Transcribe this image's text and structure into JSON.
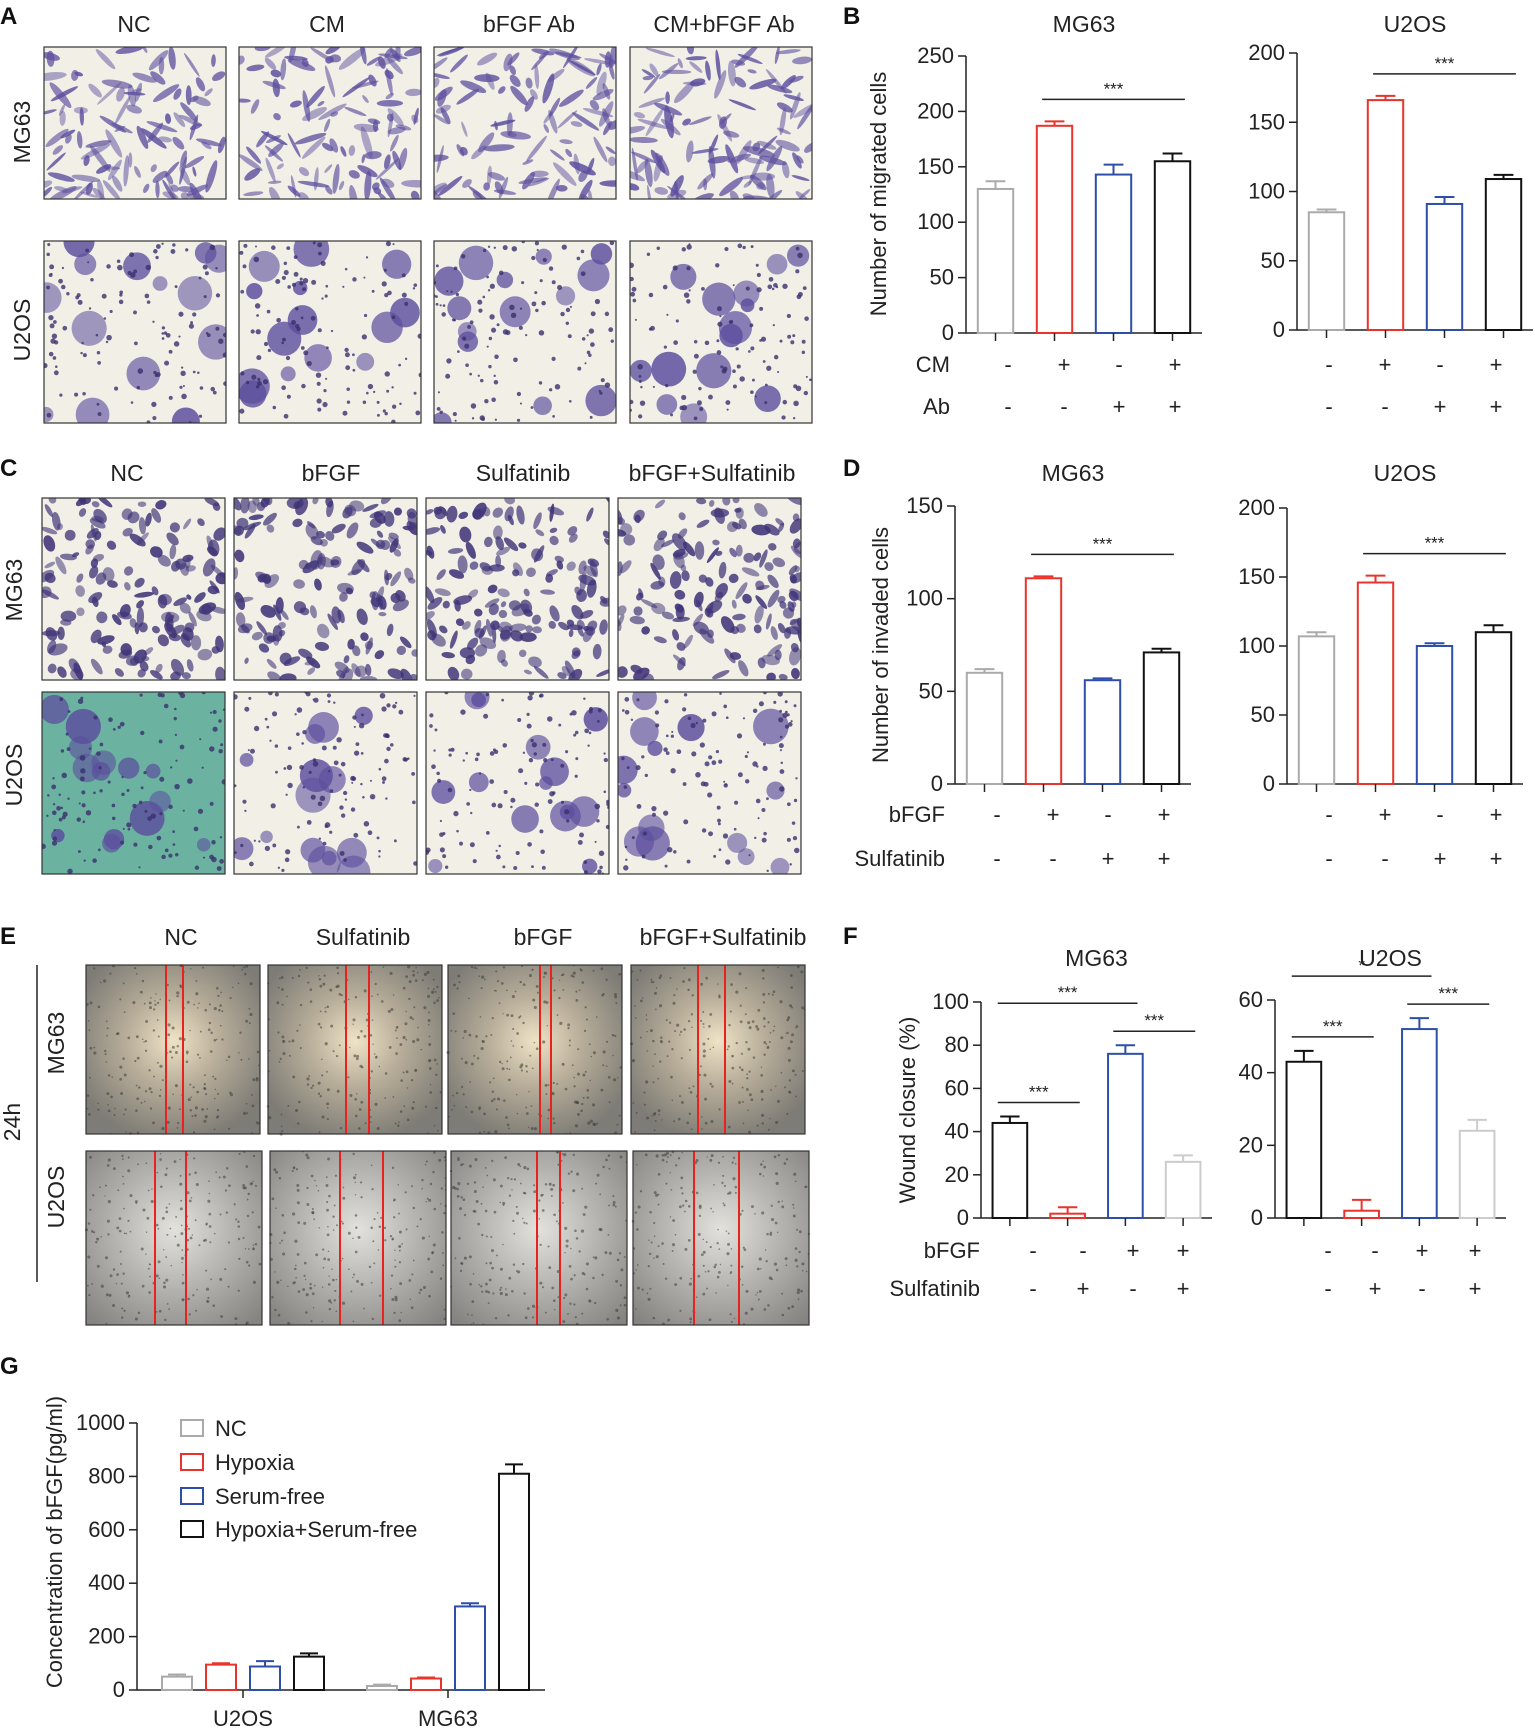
{
  "colors": {
    "gray": "#aaaaaa",
    "red": "#e8342c",
    "blue": "#2e4fa8",
    "black": "#111111",
    "lightgray": "#cccccc",
    "stain": "#5c4e9e",
    "stain_bg": "#f1efe6",
    "teal_bg": "#6bb3a0",
    "wound_bg": "#8d8c86",
    "wound_light": "#e9dfca",
    "wound_line": "#e8221c"
  },
  "panel_A": {
    "label": "A",
    "columns": [
      "NC",
      "CM",
      "bFGF Ab",
      "CM+bFGF Ab"
    ],
    "rows": [
      "MG63",
      "U2OS"
    ]
  },
  "panel_C": {
    "label": "C",
    "columns": [
      "NC",
      "bFGF",
      "Sulfatinib",
      "bFGF+Sulfatinib"
    ],
    "rows": [
      "MG63",
      "U2OS"
    ]
  },
  "panel_E": {
    "label": "E",
    "columns": [
      "NC",
      "Sulfatinib",
      "bFGF",
      "bFGF+Sulfatinib"
    ],
    "rows": [
      "MG63",
      "U2OS"
    ],
    "time": "24h"
  },
  "panel_B": {
    "label": "B",
    "conditions": [
      {
        "name": "CM",
        "signs": [
          "-",
          "+",
          "-",
          "+"
        ]
      },
      {
        "name": "Ab",
        "signs": [
          "-",
          "-",
          "+",
          "+"
        ]
      }
    ]
  },
  "panel_D": {
    "label": "D",
    "conditions": [
      {
        "name": "bFGF",
        "signs": [
          "-",
          "+",
          "-",
          "+"
        ]
      },
      {
        "name": "Sulfatinib",
        "signs": [
          "-",
          "-",
          "+",
          "+"
        ]
      }
    ]
  },
  "panel_F": {
    "label": "F",
    "conditions": [
      {
        "name": "bFGF",
        "signs": [
          "-",
          "-",
          "+",
          "+"
        ]
      },
      {
        "name": "Sulfatinib",
        "signs": [
          "-",
          "+",
          "-",
          "+"
        ]
      }
    ]
  },
  "panel_G": {
    "label": "G"
  },
  "chart_data": [
    {
      "panel": "B",
      "type": "bar",
      "title": "MG63",
      "ylabel": "Number of migrated cells",
      "ylim": [
        0,
        250
      ],
      "yticks": [
        0,
        50,
        100,
        150,
        200,
        250
      ],
      "values": [
        130,
        187,
        143,
        155
      ],
      "errors": [
        7,
        4,
        9,
        7
      ],
      "bar_colors": [
        "gray",
        "red",
        "blue",
        "black"
      ],
      "annotations": [
        {
          "text": "***",
          "from": 1,
          "to": 3
        }
      ]
    },
    {
      "panel": "B",
      "type": "bar",
      "title": "U2OS",
      "ylabel": "",
      "ylim": [
        0,
        200
      ],
      "yticks": [
        0,
        50,
        100,
        150,
        200
      ],
      "values": [
        85,
        166,
        91,
        109
      ],
      "errors": [
        2,
        3,
        5,
        3
      ],
      "bar_colors": [
        "gray",
        "red",
        "blue",
        "black"
      ],
      "annotations": [
        {
          "text": "***",
          "from": 1,
          "to": 3
        }
      ]
    },
    {
      "panel": "D",
      "type": "bar",
      "title": "MG63",
      "ylabel": "Number of invaded cells",
      "ylim": [
        0,
        150
      ],
      "yticks": [
        0,
        50,
        100,
        150
      ],
      "values": [
        60,
        111,
        56,
        71
      ],
      "errors": [
        2,
        1,
        1,
        2
      ],
      "bar_colors": [
        "gray",
        "red",
        "blue",
        "black"
      ],
      "annotations": [
        {
          "text": "***",
          "from": 1,
          "to": 3
        }
      ]
    },
    {
      "panel": "D",
      "type": "bar",
      "title": "U2OS",
      "ylabel": "",
      "ylim": [
        0,
        200
      ],
      "yticks": [
        0,
        50,
        100,
        150,
        200
      ],
      "values": [
        107,
        146,
        100,
        110
      ],
      "errors": [
        3,
        5,
        2,
        5
      ],
      "bar_colors": [
        "gray",
        "red",
        "blue",
        "black"
      ],
      "annotations": [
        {
          "text": "***",
          "from": 1,
          "to": 3
        }
      ]
    },
    {
      "panel": "F",
      "type": "bar",
      "title": "MG63",
      "ylabel": "Wound closure (%)",
      "ylim": [
        0,
        100
      ],
      "yticks": [
        0,
        20,
        40,
        60,
        80,
        100
      ],
      "values": [
        44,
        2,
        76,
        26
      ],
      "errors": [
        3,
        3,
        4,
        3
      ],
      "bar_colors": [
        "black",
        "red",
        "blue",
        "lightgray"
      ],
      "annotations": [
        {
          "text": "***",
          "from": 0,
          "to": 1,
          "level": 0
        },
        {
          "text": "***",
          "from": 0,
          "to": 2,
          "level": 1
        },
        {
          "text": "***",
          "from": 2,
          "to": 3,
          "level": 0
        }
      ]
    },
    {
      "panel": "F",
      "type": "bar",
      "title": "U2OS",
      "ylabel": "",
      "ylim": [
        0,
        60
      ],
      "yticks": [
        0,
        20,
        40,
        60
      ],
      "values": [
        43,
        2,
        52,
        24
      ],
      "errors": [
        3,
        3,
        3,
        3
      ],
      "bar_colors": [
        "black",
        "red",
        "blue",
        "lightgray"
      ],
      "annotations": [
        {
          "text": "***",
          "from": 0,
          "to": 1,
          "level": 0
        },
        {
          "text": "*",
          "from": 0,
          "to": 2,
          "level": 1
        },
        {
          "text": "***",
          "from": 2,
          "to": 3,
          "level": 0
        }
      ]
    },
    {
      "panel": "G",
      "type": "bar",
      "title": "",
      "ylabel": "Concentration of bFGF(pg/ml)",
      "ylim": [
        0,
        1000
      ],
      "yticks": [
        0,
        200,
        400,
        600,
        800,
        1000
      ],
      "categories": [
        "U2OS",
        "MG63"
      ],
      "series": [
        {
          "name": "NC",
          "color": "gray",
          "values": [
            50,
            15
          ],
          "errors": [
            8,
            5
          ]
        },
        {
          "name": "Hypoxia",
          "color": "red",
          "values": [
            95,
            43
          ],
          "errors": [
            5,
            4
          ]
        },
        {
          "name": "Serum-free",
          "color": "blue",
          "values": [
            88,
            313
          ],
          "errors": [
            20,
            12
          ]
        },
        {
          "name": "Hypoxia+Serum-free",
          "color": "black",
          "values": [
            125,
            810
          ],
          "errors": [
            12,
            35
          ]
        }
      ],
      "legend": "top-left"
    }
  ]
}
